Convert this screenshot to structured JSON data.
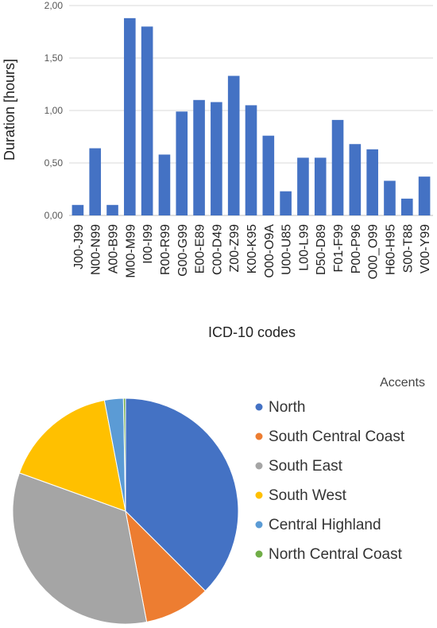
{
  "chart_data": [
    {
      "type": "bar",
      "title": "",
      "xlabel": "ICD-10 codes",
      "ylabel": "Duration [hours]",
      "ylim": [
        0,
        2
      ],
      "yticks": [
        "0,00",
        "0,50",
        "1,00",
        "1,50",
        "2,00"
      ],
      "grid": true,
      "categories": [
        "J00-J99",
        "N00-N99",
        "A00-B99",
        "M00-M99",
        "I00-I99",
        "R00-R99",
        "G00-G99",
        "E00-E89",
        "C00-D49",
        "Z00-Z99",
        "K00-K95",
        "O00-O9A",
        "U00-U85",
        "L00-L99",
        "D50-D89",
        "F01-F99",
        "P00-P96",
        "O00_O99",
        "H60-H95",
        "S00-T88",
        "V00-Y99"
      ],
      "values": [
        0.1,
        0.64,
        0.1,
        1.88,
        1.8,
        0.58,
        0.99,
        1.1,
        1.08,
        1.33,
        1.05,
        0.76,
        0.23,
        0.55,
        0.55,
        0.91,
        0.68,
        0.63,
        0.33,
        0.16,
        0.37
      ],
      "color": "#4472C4"
    },
    {
      "type": "pie",
      "legend_title": "Accents",
      "legend_position": "right",
      "slices": [
        {
          "label": "North",
          "value": 37.5,
          "color": "#4472C4"
        },
        {
          "label": "South Central Coast",
          "value": 9.5,
          "color": "#ED7D31"
        },
        {
          "label": "South East",
          "value": 33.5,
          "color": "#A5A5A5"
        },
        {
          "label": "South West",
          "value": 16.5,
          "color": "#FFC000"
        },
        {
          "label": "Central Highland",
          "value": 2.7,
          "color": "#5B9BD5"
        },
        {
          "label": "North Central Coast",
          "value": 0.3,
          "color": "#70AD47"
        }
      ]
    }
  ]
}
